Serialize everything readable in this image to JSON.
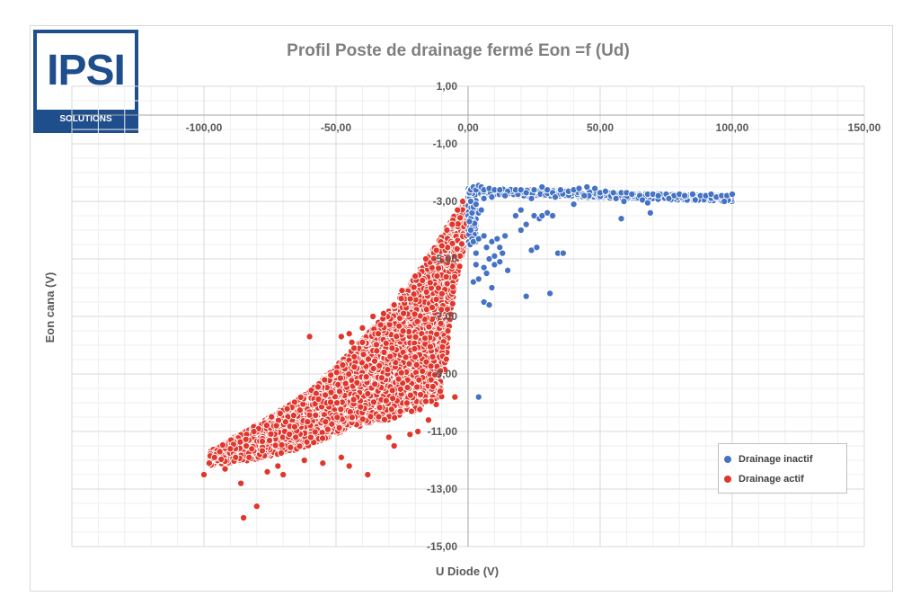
{
  "logo": {
    "main_text": "IPSI",
    "sub_text": "SOLUTIONS"
  },
  "chart_data": {
    "type": "scatter",
    "title": "Profil Poste de drainage fermé Eon =f (Ud)",
    "xlabel": "U Diode (V)",
    "ylabel": "Eon cana  (V)",
    "xlim": [
      -150,
      150
    ],
    "ylim": [
      -15,
      1
    ],
    "x_ticks": [
      -100,
      -50,
      0,
      50,
      100,
      150
    ],
    "x_tick_labels": [
      "-100,00",
      "-50,00",
      "0,00",
      "50,00",
      "100,00",
      "150,00"
    ],
    "y_ticks": [
      1,
      -1,
      -3,
      -5,
      -7,
      -9,
      -11,
      -13,
      -15
    ],
    "y_tick_labels": [
      "1,00",
      "-1,00",
      "-3,00",
      "-5,00",
      "-7,00",
      "-9,00",
      "-11,00",
      "-13,00",
      "-15,00"
    ],
    "grid": true,
    "minor_grid": true,
    "legend_position": "bottom-right",
    "colors": {
      "inactive": "#4472c4",
      "active": "#e0362c",
      "grid": "#d9d9d9",
      "minor_grid": "#efefef"
    },
    "series": [
      {
        "name": "Drainage inactif",
        "color": "#4472c4",
        "points": [
          [
            0.5,
            -2.7
          ],
          [
            1,
            -2.6
          ],
          [
            2,
            -2.5
          ],
          [
            3,
            -2.6
          ],
          [
            4,
            -2.45
          ],
          [
            5,
            -2.5
          ],
          [
            6,
            -2.6
          ],
          [
            8,
            -2.55
          ],
          [
            10,
            -2.6
          ],
          [
            12,
            -2.6
          ],
          [
            15,
            -2.65
          ],
          [
            18,
            -2.6
          ],
          [
            20,
            -2.6
          ],
          [
            22,
            -2.7
          ],
          [
            25,
            -2.6
          ],
          [
            28,
            -2.5
          ],
          [
            30,
            -2.6
          ],
          [
            32,
            -2.7
          ],
          [
            35,
            -2.6
          ],
          [
            38,
            -2.65
          ],
          [
            40,
            -2.6
          ],
          [
            42,
            -2.55
          ],
          [
            45,
            -2.5
          ],
          [
            48,
            -2.55
          ],
          [
            50,
            -2.7
          ],
          [
            52,
            -2.65
          ],
          [
            55,
            -2.7
          ],
          [
            58,
            -2.7
          ],
          [
            60,
            -2.7
          ],
          [
            62,
            -2.75
          ],
          [
            65,
            -2.8
          ],
          [
            68,
            -2.75
          ],
          [
            70,
            -2.75
          ],
          [
            72,
            -2.8
          ],
          [
            75,
            -2.75
          ],
          [
            78,
            -2.8
          ],
          [
            80,
            -2.75
          ],
          [
            82,
            -2.8
          ],
          [
            85,
            -2.75
          ],
          [
            88,
            -2.8
          ],
          [
            90,
            -2.8
          ],
          [
            92,
            -2.75
          ],
          [
            94,
            -2.85
          ],
          [
            96,
            -2.8
          ],
          [
            98,
            -2.8
          ],
          [
            100,
            -2.75
          ],
          [
            6,
            -2.9
          ],
          [
            9,
            -2.85
          ],
          [
            14,
            -2.8
          ],
          [
            24,
            -2.9
          ],
          [
            33,
            -2.85
          ],
          [
            44,
            -2.8
          ],
          [
            56,
            -2.9
          ],
          [
            66,
            -2.95
          ],
          [
            76,
            -2.9
          ],
          [
            86,
            -2.95
          ],
          [
            97,
            -3.0
          ],
          [
            59,
            -3.0
          ],
          [
            68,
            -3.05
          ],
          [
            1,
            -3.0
          ],
          [
            1.5,
            -3.4
          ],
          [
            2,
            -3.2
          ],
          [
            3,
            -3.1
          ],
          [
            4,
            -3.4
          ],
          [
            5,
            -3.3
          ],
          [
            0.5,
            -3.7
          ],
          [
            1,
            -4.0
          ],
          [
            1.5,
            -4.3
          ],
          [
            0.8,
            -4.5
          ],
          [
            2,
            -4.4
          ],
          [
            3,
            -4.8
          ],
          [
            4,
            -4.3
          ],
          [
            6,
            -4.2
          ],
          [
            7,
            -4.6
          ],
          [
            8,
            -5.0
          ],
          [
            9,
            -4.4
          ],
          [
            10,
            -4.9
          ],
          [
            11,
            -4.3
          ],
          [
            12,
            -4.6
          ],
          [
            13,
            -4.8
          ],
          [
            14,
            -4.2
          ],
          [
            3,
            -5.2
          ],
          [
            6,
            -5.3
          ],
          [
            10,
            -5.2
          ],
          [
            12,
            -5.1
          ],
          [
            15,
            -5.4
          ],
          [
            18,
            -3.5
          ],
          [
            20,
            -3.3
          ],
          [
            22,
            -3.8
          ],
          [
            25,
            -3.5
          ],
          [
            27,
            -3.6
          ],
          [
            30,
            -3.4
          ],
          [
            32,
            -3.5
          ],
          [
            24,
            -4.7
          ],
          [
            26,
            -4.6
          ],
          [
            34,
            -4.8
          ],
          [
            36,
            -4.8
          ],
          [
            20,
            -4.0
          ],
          [
            28,
            -3.5
          ],
          [
            40,
            -3.1
          ],
          [
            58,
            -3.6
          ],
          [
            69,
            -3.4
          ],
          [
            2,
            -5.8
          ],
          [
            4,
            -5.7
          ],
          [
            7,
            -5.5
          ],
          [
            9,
            -6.0
          ],
          [
            6,
            -6.5
          ],
          [
            8,
            -6.6
          ],
          [
            22,
            -6.3
          ],
          [
            31,
            -6.2
          ],
          [
            4,
            -9.8
          ]
        ]
      },
      {
        "name": "Drainage actif",
        "color": "#e0362c",
        "points": [
          [
            -100,
            -12.5
          ],
          [
            -98,
            -12.1
          ],
          [
            -96,
            -11.9
          ],
          [
            -94,
            -11.7
          ],
          [
            -92,
            -12.3
          ],
          [
            -90,
            -11.6
          ],
          [
            -88,
            -11.9
          ],
          [
            -86,
            -12.8
          ],
          [
            -85,
            -14.0
          ],
          [
            -84,
            -11.5
          ],
          [
            -80,
            -13.6
          ],
          [
            -76,
            -12.4
          ],
          [
            -72,
            -12.2
          ],
          [
            -70,
            -12.5
          ],
          [
            -62,
            -12.0
          ],
          [
            -55,
            -12.1
          ],
          [
            -48,
            -11.9
          ],
          [
            -45,
            -12.2
          ],
          [
            -38,
            -12.5
          ],
          [
            -30,
            -11.2
          ],
          [
            -28,
            -11.5
          ],
          [
            -22,
            -11.1
          ],
          [
            -19,
            -11.0
          ],
          [
            -15,
            -10.6
          ],
          [
            -5,
            -9.8
          ],
          [
            -60,
            -7.7
          ],
          [
            -48,
            -7.7
          ],
          [
            -45,
            -7.6
          ],
          [
            -44,
            -7.9
          ],
          [
            -40,
            -7.9
          ],
          [
            -40,
            -7.4
          ],
          [
            -36,
            -7.0
          ],
          [
            -34,
            -7.6
          ],
          [
            -32,
            -6.9
          ],
          [
            -28,
            -6.6
          ],
          [
            -25,
            -6.1
          ],
          [
            -20,
            -5.6
          ],
          [
            -16,
            -5.0
          ],
          [
            -12,
            -4.7
          ],
          [
            -8,
            -4.0
          ],
          [
            -6,
            -3.8
          ],
          [
            -4,
            -3.3
          ],
          [
            -2,
            -3.0
          ],
          [
            0,
            -2.9
          ]
        ],
        "band": {
          "x_from": -98,
          "x_to": 0,
          "upper": [
            [
              -98,
              -11.7
            ],
            [
              -75,
              -10.5
            ],
            [
              -60,
              -9.6
            ],
            [
              -50,
              -8.7
            ],
            [
              -40,
              -7.8
            ],
            [
              -30,
              -6.8
            ],
            [
              -20,
              -5.6
            ],
            [
              -10,
              -4.2
            ],
            [
              -5,
              -3.4
            ],
            [
              0,
              -2.9
            ]
          ],
          "lower": [
            [
              -98,
              -12.2
            ],
            [
              -75,
              -11.9
            ],
            [
              -60,
              -11.5
            ],
            [
              -50,
              -11.1
            ],
            [
              -40,
              -10.8
            ],
            [
              -30,
              -10.6
            ],
            [
              -20,
              -10.3
            ],
            [
              -10,
              -10.0
            ],
            [
              -5,
              -6.0
            ],
            [
              0,
              -4.0
            ]
          ],
          "count": 5200
        }
      }
    ]
  }
}
